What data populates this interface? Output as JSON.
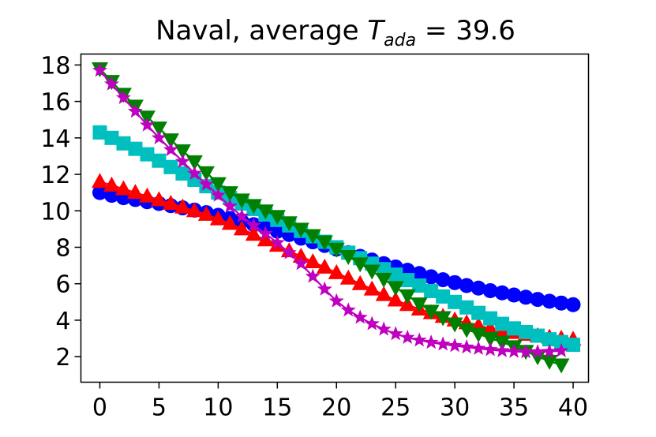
{
  "chart_data": {
    "type": "scatter",
    "title": {
      "prefix": "Naval, average ",
      "symbol": "T",
      "subscript": "ada",
      "suffix": " = 39.6"
    },
    "xlabel": "",
    "ylabel": "",
    "xlim": [
      -1.6,
      41.3
    ],
    "ylim": [
      0.6,
      18.6
    ],
    "xticks": [
      0,
      5,
      10,
      15,
      20,
      25,
      30,
      35,
      40
    ],
    "yticks": [
      2,
      4,
      6,
      8,
      10,
      12,
      14,
      16,
      18
    ],
    "grid": false,
    "legend": "none",
    "series": [
      {
        "marker": "circle",
        "color": "#0000ff",
        "x": [
          0,
          1,
          2,
          3,
          4,
          5,
          6,
          7,
          8,
          9,
          10,
          11,
          12,
          13,
          14,
          15,
          16,
          17,
          18,
          19,
          20,
          21,
          22,
          23,
          24,
          25,
          26,
          27,
          28,
          29,
          30,
          31,
          32,
          33,
          34,
          35,
          36,
          37,
          38,
          39,
          40
        ],
        "values": [
          11.0,
          10.85,
          10.72,
          10.62,
          10.5,
          10.4,
          10.28,
          10.16,
          10.04,
          9.9,
          9.75,
          9.58,
          9.42,
          9.24,
          9.06,
          8.88,
          8.7,
          8.5,
          8.3,
          8.1,
          7.9,
          7.7,
          7.5,
          7.3,
          7.1,
          6.92,
          6.74,
          6.56,
          6.38,
          6.22,
          6.06,
          5.9,
          5.76,
          5.62,
          5.5,
          5.38,
          5.26,
          5.14,
          5.04,
          4.94,
          4.85
        ]
      },
      {
        "marker": "triangle-up",
        "color": "#ff0000",
        "x": [
          0,
          1,
          2,
          3,
          4,
          5,
          6,
          7,
          8,
          9,
          10,
          11,
          12,
          13,
          14,
          15,
          16,
          17,
          18,
          19,
          20,
          21,
          22,
          23,
          24,
          25,
          26,
          27,
          28,
          29,
          30,
          31,
          32,
          33,
          34,
          35,
          36,
          37,
          38,
          39,
          40
        ],
        "values": [
          11.6,
          11.4,
          11.2,
          11.0,
          10.8,
          10.6,
          10.4,
          10.2,
          10.0,
          9.8,
          9.55,
          9.3,
          9.0,
          8.7,
          8.4,
          8.1,
          7.8,
          7.5,
          7.2,
          6.9,
          6.6,
          6.3,
          6.0,
          5.7,
          5.4,
          5.1,
          4.85,
          4.6,
          4.4,
          4.2,
          4.0,
          3.85,
          3.7,
          3.55,
          3.42,
          3.32,
          3.22,
          3.14,
          3.06,
          3.0,
          2.95
        ]
      },
      {
        "marker": "square",
        "color": "#00bfbf",
        "x": [
          0,
          1,
          2,
          3,
          4,
          5,
          6,
          7,
          8,
          9,
          10,
          11,
          12,
          13,
          14,
          15,
          16,
          17,
          18,
          19,
          20,
          21,
          22,
          23,
          24,
          25,
          26,
          27,
          28,
          29,
          30,
          31,
          32,
          33,
          34,
          35,
          36,
          37,
          38,
          39,
          40
        ],
        "values": [
          14.3,
          14.0,
          13.7,
          13.4,
          13.1,
          12.75,
          12.4,
          12.05,
          11.7,
          11.35,
          11.0,
          10.7,
          10.4,
          10.1,
          9.8,
          9.5,
          9.2,
          8.9,
          8.6,
          8.3,
          8.0,
          7.7,
          7.4,
          7.1,
          6.8,
          6.5,
          6.2,
          5.9,
          5.6,
          5.3,
          5.0,
          4.7,
          4.4,
          4.1,
          3.8,
          3.55,
          3.35,
          3.15,
          2.95,
          2.8,
          2.65
        ]
      },
      {
        "marker": "triangle-down",
        "color": "#008000",
        "x": [
          0,
          1,
          2,
          3,
          4,
          5,
          6,
          7,
          8,
          9,
          10,
          11,
          12,
          13,
          14,
          15,
          16,
          17,
          18,
          19,
          20,
          21,
          22,
          23,
          24,
          25,
          26,
          27,
          28,
          29,
          30,
          31,
          32,
          33,
          34,
          35,
          36,
          37,
          38,
          39
        ],
        "values": [
          17.8,
          17.1,
          16.4,
          15.75,
          15.15,
          14.55,
          13.9,
          13.3,
          12.7,
          12.1,
          11.5,
          11.0,
          10.6,
          10.3,
          10.0,
          9.7,
          9.35,
          9.0,
          8.65,
          8.3,
          7.9,
          7.5,
          7.1,
          6.7,
          6.25,
          5.8,
          5.35,
          4.9,
          4.5,
          4.15,
          3.8,
          3.5,
          3.25,
          3.0,
          2.8,
          2.55,
          2.3,
          2.0,
          1.75,
          1.55
        ]
      },
      {
        "marker": "star",
        "color": "#bf00bf",
        "x": [
          0,
          1,
          2,
          3,
          4,
          5,
          6,
          7,
          8,
          9,
          10,
          11,
          12,
          13,
          14,
          15,
          16,
          17,
          18,
          19,
          20,
          21,
          22,
          23,
          24,
          25,
          26,
          27,
          28,
          29,
          30,
          31,
          32,
          33,
          34,
          35,
          36,
          37,
          38,
          39
        ],
        "values": [
          17.7,
          16.95,
          16.2,
          15.45,
          14.7,
          14.0,
          13.35,
          12.7,
          12.05,
          11.45,
          10.85,
          10.25,
          9.7,
          9.2,
          8.75,
          8.25,
          7.7,
          7.1,
          6.4,
          5.7,
          5.05,
          4.55,
          4.15,
          3.8,
          3.5,
          3.25,
          3.05,
          2.9,
          2.78,
          2.68,
          2.6,
          2.52,
          2.45,
          2.38,
          2.32,
          2.28,
          2.26,
          2.26,
          2.28,
          2.32
        ]
      }
    ]
  }
}
